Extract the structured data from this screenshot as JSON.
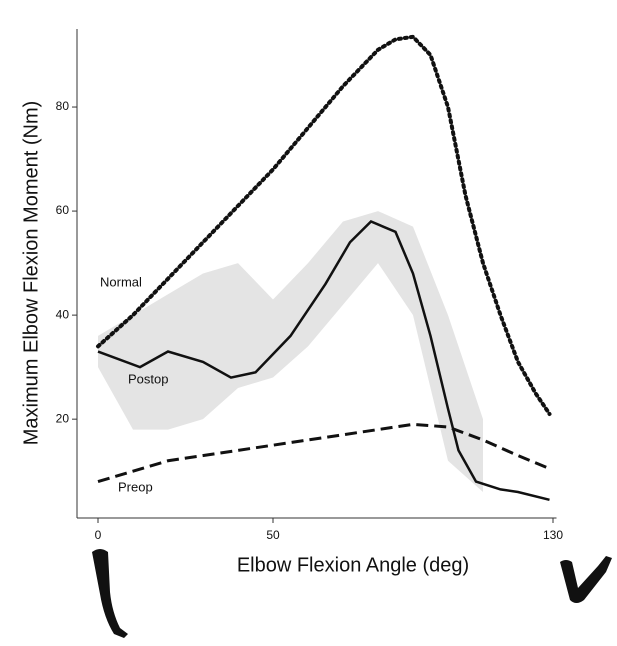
{
  "chart_data": {
    "type": "line",
    "y_label": "Maximum Elbow Flexion Moment (Nm)",
    "x_label": "Elbow Flexion Angle (deg)",
    "xlim": [
      -6,
      131
    ],
    "xticks": [
      0,
      50,
      130
    ],
    "ylim": [
      1,
      95
    ],
    "yticks": [
      20,
      40,
      60,
      80
    ],
    "series": [
      {
        "name": "Normal",
        "color": "#111111",
        "dash": "dotted",
        "x": [
          0,
          10,
          20,
          30,
          40,
          50,
          60,
          70,
          80,
          85,
          90,
          95,
          100,
          105,
          110,
          115,
          120,
          125,
          129
        ],
        "values": [
          34,
          40,
          47,
          54,
          61,
          68,
          76,
          84,
          91,
          93,
          93.5,
          90,
          80,
          63,
          50,
          40,
          31,
          25,
          21
        ]
      },
      {
        "name": "Postop",
        "color": "#111111",
        "dash": "solid",
        "x": [
          0,
          12,
          20,
          30,
          38,
          45,
          55,
          65,
          72,
          78,
          85,
          90,
          95,
          100,
          103,
          108,
          115,
          120,
          129
        ],
        "values": [
          33,
          30,
          33,
          31,
          28,
          29,
          36,
          46,
          54,
          58,
          56,
          48,
          36,
          22,
          14,
          8,
          6.5,
          6,
          4.5
        ]
      },
      {
        "name": "Preop",
        "color": "#111111",
        "dash": "dashed",
        "x": [
          0,
          10,
          20,
          40,
          60,
          80,
          90,
          100,
          110,
          120,
          129
        ],
        "values": [
          8,
          10,
          12,
          14,
          16,
          18,
          19,
          18.5,
          16,
          13,
          10.5
        ]
      }
    ],
    "band": {
      "color": "#e4e4e4",
      "x": [
        0,
        10,
        20,
        30,
        40,
        50,
        60,
        70,
        80,
        90,
        100,
        110
      ],
      "upper": [
        36,
        40,
        44,
        48,
        50,
        43,
        50,
        58,
        60,
        57,
        40,
        20
      ],
      "lower": [
        30,
        18,
        18,
        20,
        26,
        28,
        34,
        42,
        50,
        40,
        12,
        6
      ]
    }
  }
}
